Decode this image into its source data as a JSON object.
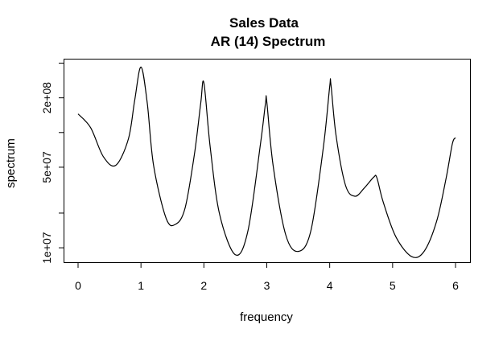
{
  "chart_data": {
    "type": "line",
    "title": "Sales Data",
    "subtitle": "AR (14) Spectrum",
    "xlabel": "frequency",
    "ylabel": "spectrum",
    "x_scale": "linear",
    "y_scale": "log",
    "xlim": [
      0,
      6
    ],
    "ylim": [
      7500000,
      430000000
    ],
    "x_ticks": [
      0,
      1,
      2,
      3,
      4,
      5,
      6
    ],
    "x_tick_labels": [
      "0",
      "1",
      "2",
      "3",
      "4",
      "5",
      "6"
    ],
    "y_ticks": [
      10000000,
      20000000,
      50000000,
      100000000,
      200000000,
      400000000
    ],
    "y_tick_labels": [
      "1e+07",
      "",
      "5e+07",
      "",
      "2e+08",
      ""
    ],
    "grid": false,
    "series": [
      {
        "x": [
          0.0,
          0.2,
          0.4,
          0.6,
          0.8,
          0.9,
          1.0,
          1.1,
          1.2,
          1.4,
          1.55,
          1.7,
          1.85,
          1.95,
          2.0,
          2.1,
          2.25,
          2.5,
          2.7,
          2.9,
          2.98,
          3.0,
          3.1,
          3.3,
          3.5,
          3.7,
          3.9,
          4.0,
          4.02,
          4.1,
          4.25,
          4.4,
          4.55,
          4.7,
          4.75,
          4.85,
          5.05,
          5.3,
          5.5,
          5.7,
          5.85,
          5.95,
          6.0
        ],
        "y": [
          145000000,
          110000000,
          62000000,
          52000000,
          88000000,
          190000000,
          370000000,
          180000000,
          52000000,
          18000000,
          16000000,
          22000000,
          65000000,
          180000000,
          270000000,
          75000000,
          19500000,
          8700000,
          14000000,
          80000000,
          180000000,
          185000000,
          52000000,
          13000000,
          9300000,
          14000000,
          75000000,
          250000000,
          260000000,
          95000000,
          35000000,
          28000000,
          33000000,
          41000000,
          40500000,
          25000000,
          12500000,
          8400000,
          9300000,
          17000000,
          40000000,
          80000000,
          90000000
        ]
      }
    ]
  }
}
